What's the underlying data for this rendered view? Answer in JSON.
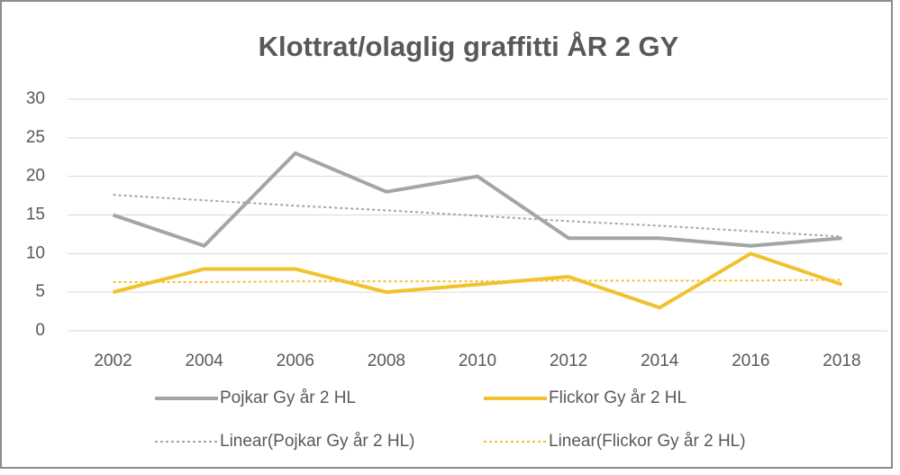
{
  "chart_data": {
    "type": "line",
    "title": "Klottrat/olaglig graffitti ÅR 2 GY",
    "categories": [
      "2002",
      "2004",
      "2006",
      "2008",
      "2010",
      "2012",
      "2014",
      "2016",
      "2018"
    ],
    "series": [
      {
        "name": "Pojkar Gy år 2 HL",
        "color": "#a5a5a5",
        "values": [
          15,
          11,
          23,
          18,
          20,
          12,
          12,
          11,
          12
        ]
      },
      {
        "name": "Flickor Gy år 2 HL",
        "color": "#f2c12e",
        "values": [
          5,
          8,
          8,
          5,
          6,
          7,
          3,
          10,
          6
        ]
      },
      {
        "name": "Linear(Pojkar Gy år 2 HL)",
        "color": "#a5a5a5",
        "dashed": true,
        "values": [
          17.6,
          16.9,
          16.2,
          15.6,
          14.9,
          14.2,
          13.6,
          12.9,
          12.2
        ]
      },
      {
        "name": "Linear(Flickor Gy år 2 HL)",
        "color": "#f2c12e",
        "dashed": true,
        "values": [
          6.3,
          6.3,
          6.4,
          6.4,
          6.4,
          6.5,
          6.5,
          6.5,
          6.6
        ]
      }
    ],
    "ylim": [
      0,
      30
    ],
    "yticks": [
      0,
      5,
      10,
      15,
      20,
      25,
      30
    ],
    "grid": true
  }
}
